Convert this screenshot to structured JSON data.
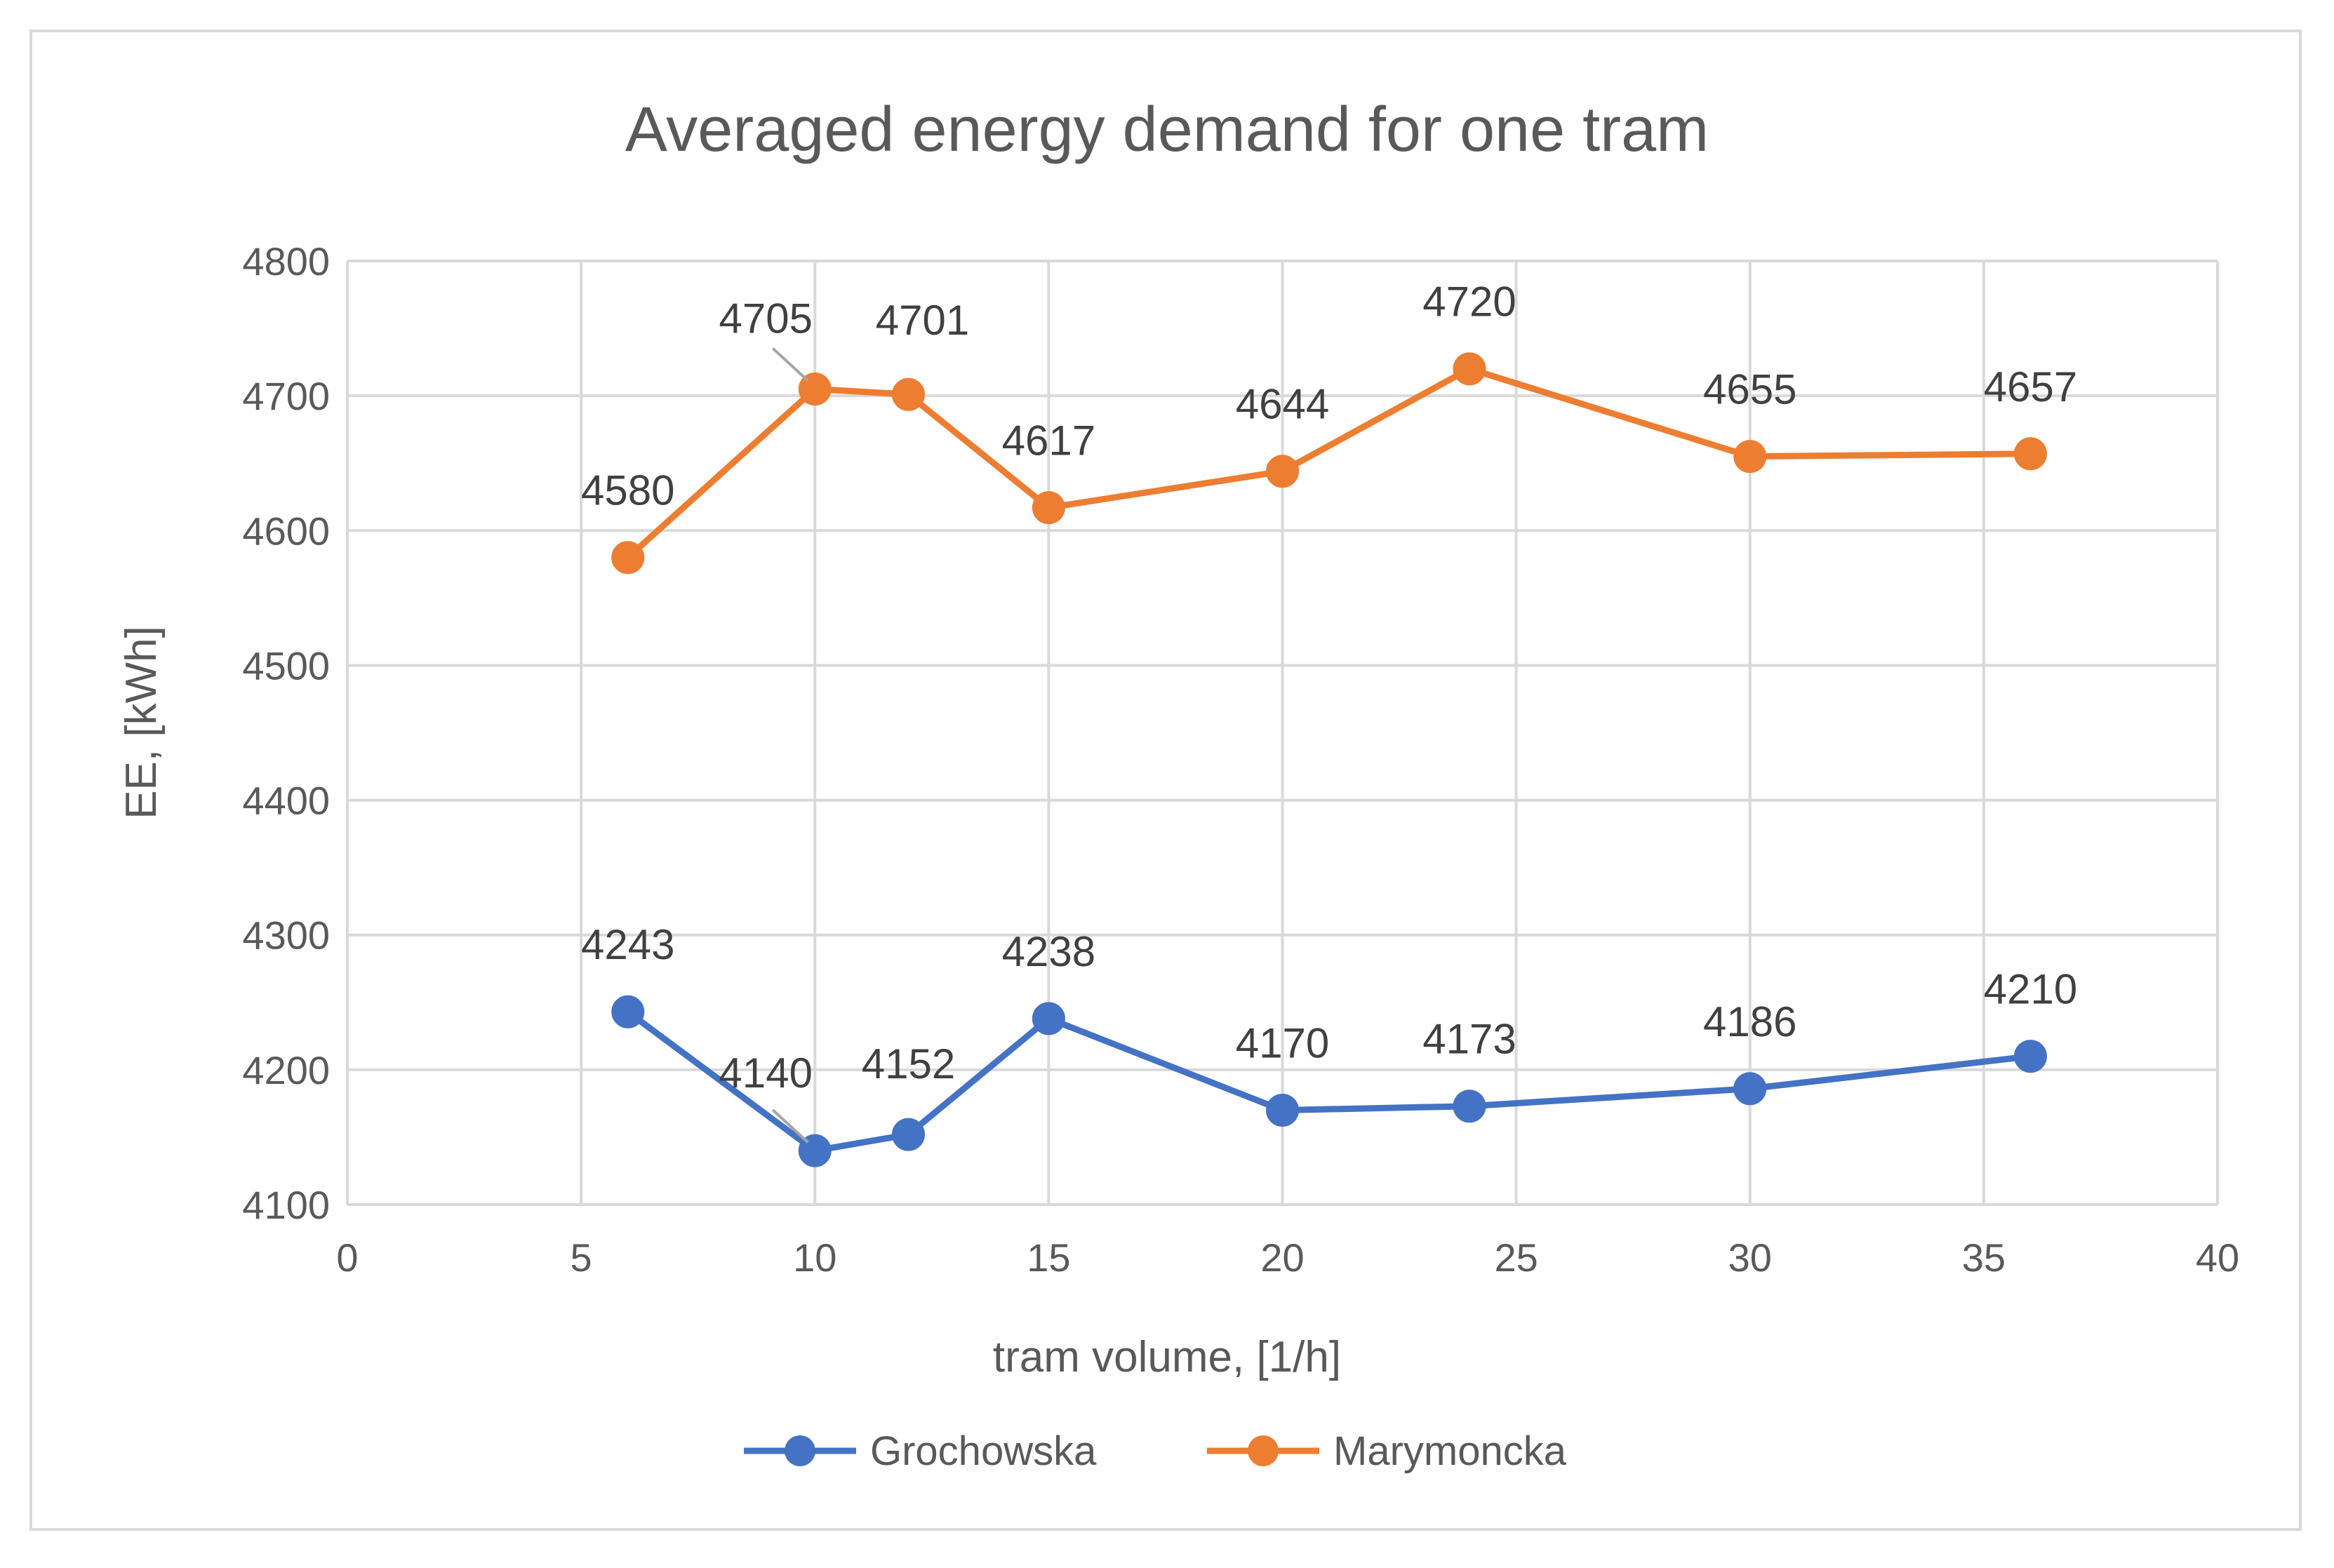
{
  "chart_data": {
    "type": "line",
    "title": "Averaged energy demand for one tram",
    "xlabel": "tram volume, [1/h]",
    "ylabel": "EE, [kWh]",
    "xlim": [
      0,
      40
    ],
    "ylim": [
      4100,
      4800
    ],
    "x_ticks": [
      0,
      5,
      10,
      15,
      20,
      25,
      30,
      35,
      40
    ],
    "y_ticks": [
      4100,
      4200,
      4300,
      4400,
      4500,
      4600,
      4700,
      4800
    ],
    "grid": true,
    "legend_position": "bottom",
    "series": [
      {
        "name": "Grochowska",
        "color": "#4472c4",
        "x": [
          6,
          10,
          12,
          15,
          20,
          24,
          30,
          36
        ],
        "values": [
          4243,
          4140,
          4152,
          4238,
          4170,
          4173,
          4186,
          4210
        ]
      },
      {
        "name": "Marymoncka",
        "color": "#ed7d31",
        "x": [
          6,
          10,
          12,
          15,
          20,
          24,
          30,
          36
        ],
        "values": [
          4580,
          4705,
          4701,
          4617,
          4644,
          4720,
          4655,
          4657
        ]
      }
    ]
  }
}
